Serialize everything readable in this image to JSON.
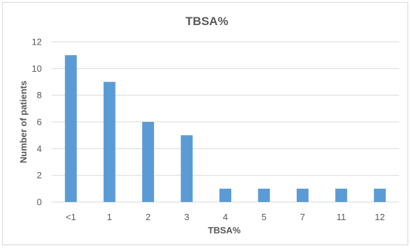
{
  "chart_data": {
    "type": "bar",
    "title": "TBSA%",
    "xlabel": "TBSA%",
    "ylabel": "Number of patients",
    "categories": [
      "<1",
      "1",
      "2",
      "3",
      "4",
      "5",
      "7",
      "11",
      "12"
    ],
    "values": [
      11,
      9,
      6,
      5,
      1,
      1,
      1,
      1,
      1
    ],
    "ylim": [
      0,
      12
    ],
    "yticks": [
      0,
      2,
      4,
      6,
      8,
      10,
      12
    ],
    "grid": true,
    "bar_color": "#5b9bd5",
    "grid_color": "#d9d9d9"
  }
}
